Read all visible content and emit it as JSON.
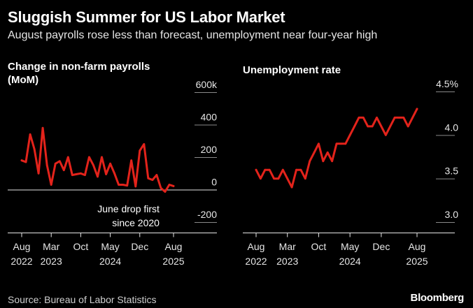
{
  "header": {
    "title": "Sluggish Summer for US Labor Market",
    "subtitle": "August payrolls rose less than forecast, unemployment near four-year high"
  },
  "footer": {
    "source": "Source: Bureau of Labor Statistics",
    "logo": "Bloomberg"
  },
  "colors": {
    "line": "#e3231b",
    "background": "#000000",
    "text": "#ffffff",
    "grid": "#8a8a8a"
  },
  "chart_data": [
    {
      "type": "line",
      "title": "Change in non-farm payrolls (MoM)",
      "title_lines": [
        "Change in non-farm payrolls",
        "(MoM)"
      ],
      "x_start": "2022-08",
      "x_end": "2025-08",
      "x_ticks": [
        {
          "date": "2022-08",
          "label": [
            "Aug",
            "2022"
          ]
        },
        {
          "date": "2023-03",
          "label": [
            "Mar",
            "2023"
          ]
        },
        {
          "date": "2023-10",
          "label": [
            "Oct",
            ""
          ]
        },
        {
          "date": "2024-05",
          "label": [
            "May",
            "2024"
          ]
        },
        {
          "date": "2024-12",
          "label": [
            "Dec",
            ""
          ]
        },
        {
          "date": "2025-08",
          "label": [
            "Aug",
            "2025"
          ]
        }
      ],
      "ylim": [
        -200,
        600
      ],
      "y_ticks": [
        {
          "value": 600,
          "label": "600k"
        },
        {
          "value": 400,
          "label": "400"
        },
        {
          "value": 200,
          "label": "200"
        },
        {
          "value": 0,
          "label": "0"
        },
        {
          "value": -200,
          "label": "-200"
        }
      ],
      "annotation": {
        "text": [
          "June drop first",
          "since 2020"
        ],
        "date": "2025-06",
        "value": -13
      },
      "series": [
        {
          "x": [
            "2022-08",
            "2022-09",
            "2022-10",
            "2022-11",
            "2022-12",
            "2023-01",
            "2023-02",
            "2023-03",
            "2023-04",
            "2023-05",
            "2023-06",
            "2023-07",
            "2023-08",
            "2023-09",
            "2023-10",
            "2023-11",
            "2023-12",
            "2024-01",
            "2024-02",
            "2024-03",
            "2024-04",
            "2024-05",
            "2024-06",
            "2024-07",
            "2024-08",
            "2024-09",
            "2024-10",
            "2024-11",
            "2024-12",
            "2025-01",
            "2025-02",
            "2025-03",
            "2025-04",
            "2025-05",
            "2025-06",
            "2025-07",
            "2025-08"
          ],
          "values": [
            180,
            170,
            340,
            250,
            100,
            380,
            150,
            30,
            160,
            175,
            120,
            200,
            90,
            95,
            100,
            90,
            200,
            150,
            80,
            200,
            95,
            160,
            100,
            30,
            30,
            25,
            180,
            20,
            240,
            280,
            70,
            60,
            90,
            10,
            -13,
            30,
            22
          ]
        }
      ]
    },
    {
      "type": "line",
      "title": "Unemployment rate",
      "x_start": "2022-08",
      "x_end": "2025-08",
      "x_ticks": [
        {
          "date": "2022-08",
          "label": [
            "Aug",
            "2022"
          ]
        },
        {
          "date": "2023-03",
          "label": [
            "Mar",
            "2023"
          ]
        },
        {
          "date": "2023-10",
          "label": [
            "Oct",
            ""
          ]
        },
        {
          "date": "2024-05",
          "label": [
            "May",
            "2024"
          ]
        },
        {
          "date": "2024-12",
          "label": [
            "Dec",
            ""
          ]
        },
        {
          "date": "2025-08",
          "label": [
            "Aug",
            "2025"
          ]
        }
      ],
      "ylim": [
        3.0,
        4.5
      ],
      "y_ticks": [
        {
          "value": 4.5,
          "label": "4.5%"
        },
        {
          "value": 4.0,
          "label": "4.0"
        },
        {
          "value": 3.5,
          "label": "3.5"
        },
        {
          "value": 3.0,
          "label": "3.0"
        }
      ],
      "series": [
        {
          "x": [
            "2022-08",
            "2022-09",
            "2022-10",
            "2022-11",
            "2022-12",
            "2023-01",
            "2023-02",
            "2023-03",
            "2023-04",
            "2023-05",
            "2023-06",
            "2023-07",
            "2023-08",
            "2023-09",
            "2023-10",
            "2023-11",
            "2023-12",
            "2024-01",
            "2024-02",
            "2024-03",
            "2024-04",
            "2024-05",
            "2024-06",
            "2024-07",
            "2024-08",
            "2024-09",
            "2024-10",
            "2024-11",
            "2024-12",
            "2025-01",
            "2025-02",
            "2025-03",
            "2025-04",
            "2025-05",
            "2025-06",
            "2025-07",
            "2025-08"
          ],
          "values": [
            3.6,
            3.5,
            3.6,
            3.6,
            3.5,
            3.5,
            3.6,
            3.5,
            3.4,
            3.6,
            3.6,
            3.5,
            3.7,
            3.8,
            3.9,
            3.7,
            3.8,
            3.7,
            3.9,
            3.9,
            3.9,
            4.0,
            4.1,
            4.2,
            4.2,
            4.1,
            4.1,
            4.2,
            4.1,
            4.0,
            4.1,
            4.2,
            4.2,
            4.2,
            4.1,
            4.2,
            4.3
          ]
        }
      ]
    }
  ]
}
